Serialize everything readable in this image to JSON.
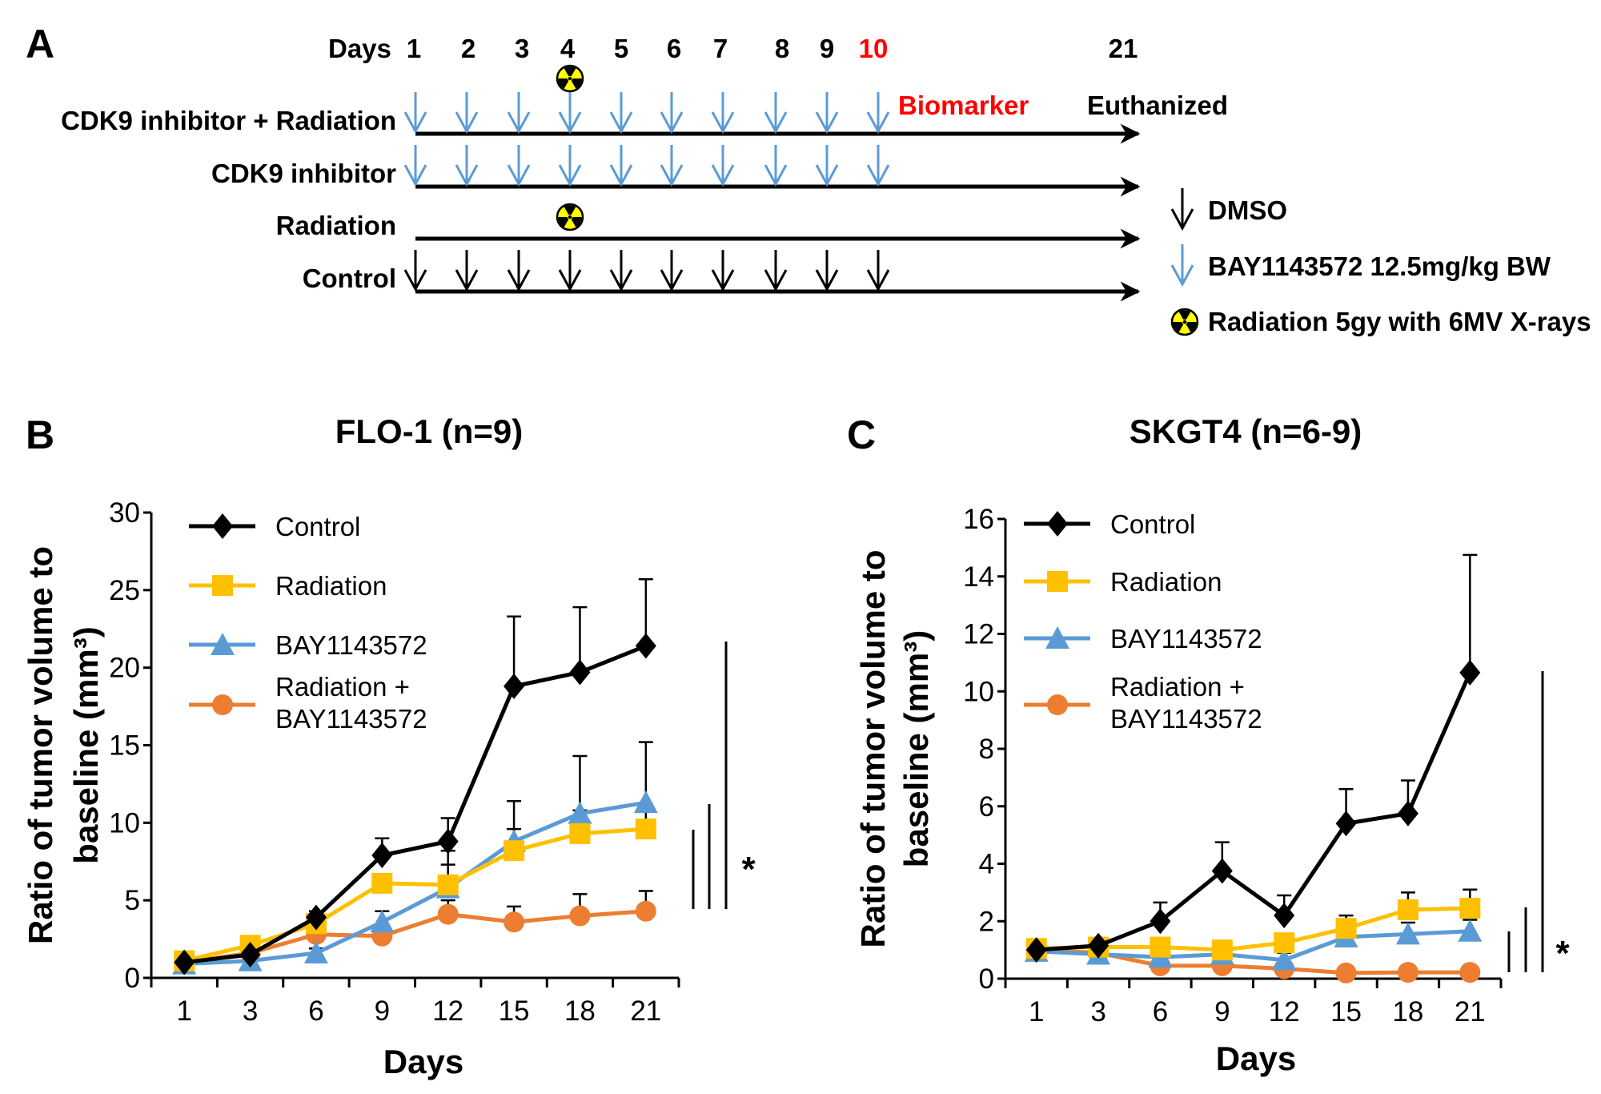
{
  "panel_a": {
    "letter": "A",
    "days_label": "Days",
    "days": [
      "1",
      "2",
      "3",
      "4",
      "5",
      "6",
      "7",
      "8",
      "9",
      "10",
      "21"
    ],
    "highlight_day": "10",
    "highlight_color": "#ff0000",
    "biomarker_label": "Biomarker",
    "euthanized_label": "Euthanized",
    "radiation_day": 4,
    "rows": [
      {
        "label": "CDK9 inhibitor + Radiation",
        "dose": "BAY1143572",
        "dose_days": [
          1,
          2,
          3,
          4,
          5,
          6,
          7,
          8,
          9,
          10
        ],
        "radiation": true
      },
      {
        "label": "CDK9 inhibitor",
        "dose": "BAY1143572",
        "dose_days": [
          1,
          2,
          3,
          4,
          5,
          6,
          7,
          8,
          9,
          10
        ],
        "radiation": false
      },
      {
        "label": "Radiation",
        "dose": "none",
        "dose_days": [],
        "radiation": true
      },
      {
        "label": "Control",
        "dose": "DMSO",
        "dose_days": [
          1,
          2,
          3,
          4,
          5,
          6,
          7,
          8,
          9,
          10
        ],
        "radiation": false
      }
    ],
    "legend": [
      {
        "icon": "black-arrow-down-icon",
        "label": "DMSO",
        "color": "#000000"
      },
      {
        "icon": "blue-arrow-down-icon",
        "label": "BAY1143572  12.5mg/kg BW",
        "color": "#5b9bd5"
      },
      {
        "icon": "radiation-icon",
        "label": "Radiation 5gy with 6MV  X-rays",
        "color": "#ffff00"
      }
    ]
  },
  "chart_data": [
    {
      "letter": "B",
      "type": "line",
      "title": "FLO-1 (n=9)",
      "xlabel": "Days",
      "ylabel": [
        "Ratio of tumor volume to",
        "baseline (mm³)"
      ],
      "categories": [
        "1",
        "3",
        "6",
        "9",
        "12",
        "15",
        "18",
        "21"
      ],
      "ylim": [
        0,
        30
      ],
      "yticks": [
        0,
        5,
        10,
        15,
        20,
        25,
        30
      ],
      "grid": false,
      "legend_position": "top-left",
      "significance": "*",
      "series": [
        {
          "name": "Control",
          "color": "#000000",
          "marker": "diamond",
          "values": [
            1.0,
            1.5,
            3.9,
            7.9,
            8.8,
            18.8,
            19.7,
            21.4
          ],
          "error": [
            0,
            0,
            0.4,
            1.1,
            1.5,
            4.5,
            4.2,
            4.3
          ]
        },
        {
          "name": "Radiation",
          "color": "#ffc000",
          "marker": "square",
          "values": [
            1.1,
            2.1,
            3.5,
            6.1,
            6.0,
            8.2,
            9.3,
            9.6
          ],
          "error": [
            0,
            0,
            0,
            0,
            1.3,
            1.4,
            1.5,
            1.6
          ]
        },
        {
          "name": "BAY1143572",
          "color": "#5b9bd5",
          "marker": "triangle",
          "values": [
            0.9,
            1.1,
            1.6,
            3.6,
            5.8,
            8.8,
            10.6,
            11.3
          ],
          "error": [
            0,
            0,
            0.3,
            0.7,
            2.4,
            2.6,
            3.7,
            3.9
          ]
        },
        {
          "name": "Radiation + BAY1143572",
          "color": "#ed7d31",
          "marker": "circle",
          "values": [
            1.0,
            1.6,
            2.8,
            2.7,
            4.1,
            3.6,
            4.0,
            4.3
          ],
          "error": [
            0,
            0,
            0,
            0,
            0.9,
            1.0,
            1.4,
            1.3
          ]
        }
      ]
    },
    {
      "letter": "C",
      "type": "line",
      "title": "SKGT4 (n=6-9)",
      "xlabel": "Days",
      "ylabel": [
        "Ratio of tumor volume to",
        "baseline (mm³)"
      ],
      "categories": [
        "1",
        "3",
        "6",
        "9",
        "12",
        "15",
        "18",
        "21"
      ],
      "ylim": [
        0,
        16
      ],
      "yticks": [
        0,
        2,
        4,
        6,
        8,
        10,
        12,
        14,
        16
      ],
      "grid": false,
      "legend_position": "top-left",
      "significance": "*",
      "series": [
        {
          "name": "Control",
          "color": "#000000",
          "marker": "diamond",
          "values": [
            1.0,
            1.15,
            2.0,
            3.75,
            2.2,
            5.4,
            5.75,
            10.65
          ],
          "error": [
            0,
            0,
            0.65,
            1.0,
            0.7,
            1.2,
            1.15,
            4.1
          ]
        },
        {
          "name": "Radiation",
          "color": "#ffc000",
          "marker": "square",
          "values": [
            1.05,
            1.1,
            1.1,
            1.0,
            1.25,
            1.75,
            2.4,
            2.45
          ],
          "error": [
            0,
            0,
            0,
            0,
            0.3,
            0.45,
            0.6,
            0.65
          ]
        },
        {
          "name": "BAY1143572",
          "color": "#5b9bd5",
          "marker": "triangle",
          "values": [
            0.95,
            0.85,
            0.75,
            0.85,
            0.65,
            1.45,
            1.55,
            1.65
          ],
          "error": [
            0,
            0,
            0,
            0,
            0.25,
            0.6,
            0.4,
            0.4
          ]
        },
        {
          "name": "Radiation + BAY1143572",
          "color": "#ed7d31",
          "marker": "circle",
          "values": [
            1.0,
            0.9,
            0.45,
            0.45,
            0.35,
            0.2,
            0.22,
            0.22
          ],
          "error": [
            0,
            0,
            0,
            0,
            0,
            0,
            0,
            0
          ]
        }
      ]
    }
  ]
}
